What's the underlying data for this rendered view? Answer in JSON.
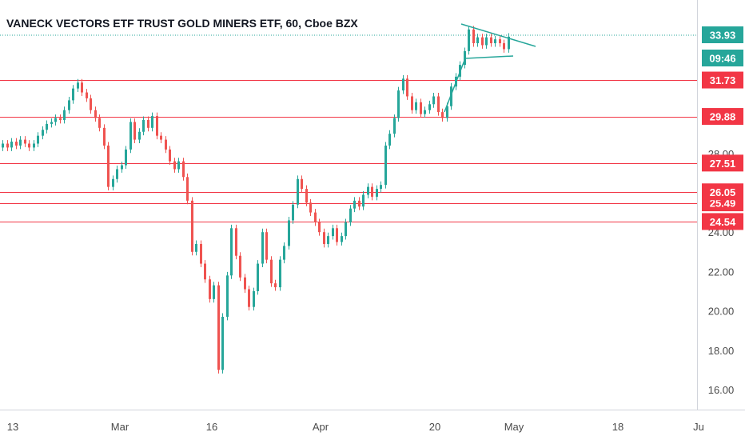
{
  "chart_data": {
    "type": "candlestick",
    "title": "VANECK VECTORS ETF TRUST GOLD MINERS ETF, 60, Cboe BZX",
    "y_ticks": [
      "16.00",
      "18.00",
      "20.00",
      "22.00",
      "24.00",
      "26.00",
      "28.00"
    ],
    "ylim": [
      15.6,
      34.9
    ],
    "x_ticks": [
      "13",
      "Mar",
      "16",
      "Apr",
      "20",
      "May",
      "18",
      "Ju"
    ],
    "grid": false,
    "price_badge": {
      "value": "33.93",
      "timer": "09:46",
      "color": "#26a69a"
    },
    "levels": [
      {
        "value": 31.73,
        "label": "31.73"
      },
      {
        "value": 29.88,
        "label": "29.88"
      },
      {
        "value": 27.51,
        "label": "27.51"
      },
      {
        "value": 25.49,
        "label": "25.49"
      },
      {
        "value": 24.54,
        "label": "24.54"
      },
      {
        "value": 26.05,
        "label": "26.05"
      }
    ],
    "pattern": "pennant",
    "series": [
      {
        "style": "candles",
        "points": [
          [
            28.3,
            28.5
          ],
          [
            28.5,
            28.3
          ],
          [
            28.3,
            28.6
          ],
          [
            28.6,
            28.4
          ],
          [
            28.4,
            28.7
          ],
          [
            28.7,
            28.5
          ],
          [
            28.5,
            28.3
          ],
          [
            28.3,
            28.5
          ],
          [
            28.5,
            28.9
          ],
          [
            28.9,
            29.2
          ],
          [
            29.2,
            29.5
          ],
          [
            29.5,
            29.6
          ],
          [
            29.6,
            29.8
          ],
          [
            29.8,
            29.7
          ],
          [
            29.7,
            30.2
          ],
          [
            30.2,
            30.7
          ],
          [
            30.7,
            31.3
          ],
          [
            31.3,
            31.6
          ],
          [
            31.6,
            31.1
          ],
          [
            31.1,
            30.8
          ],
          [
            30.8,
            30.2
          ],
          [
            30.2,
            29.8
          ],
          [
            29.8,
            29.3
          ],
          [
            29.3,
            28.4
          ],
          [
            28.4,
            26.3
          ],
          [
            26.3,
            26.7
          ],
          [
            26.7,
            27.2
          ],
          [
            27.2,
            27.4
          ],
          [
            27.4,
            28.2
          ],
          [
            28.2,
            29.6
          ],
          [
            29.6,
            28.7
          ],
          [
            28.7,
            29.1
          ],
          [
            29.1,
            29.7
          ],
          [
            29.7,
            29.3
          ],
          [
            29.3,
            29.9
          ],
          [
            29.9,
            28.9
          ],
          [
            28.9,
            28.7
          ],
          [
            28.7,
            28.2
          ],
          [
            28.2,
            27.6
          ],
          [
            27.6,
            27.2
          ],
          [
            27.2,
            27.6
          ],
          [
            27.6,
            26.8
          ],
          [
            26.8,
            25.6
          ],
          [
            25.6,
            23.0
          ],
          [
            23.0,
            23.4
          ],
          [
            23.4,
            22.4
          ],
          [
            22.4,
            21.6
          ],
          [
            21.6,
            20.6
          ],
          [
            20.6,
            21.3
          ],
          [
            21.3,
            17.0
          ],
          [
            17.0,
            19.7
          ],
          [
            19.7,
            21.8
          ],
          [
            21.8,
            24.2
          ],
          [
            24.2,
            22.8
          ],
          [
            22.8,
            21.7
          ],
          [
            21.7,
            21.1
          ],
          [
            21.1,
            20.2
          ],
          [
            20.2,
            21.0
          ],
          [
            21.0,
            22.4
          ],
          [
            22.4,
            24.0
          ],
          [
            24.0,
            22.6
          ],
          [
            22.6,
            21.4
          ],
          [
            21.4,
            21.2
          ],
          [
            21.2,
            22.6
          ],
          [
            22.6,
            23.3
          ],
          [
            23.3,
            24.6
          ],
          [
            24.6,
            25.4
          ],
          [
            25.4,
            26.7
          ],
          [
            26.7,
            26.2
          ],
          [
            26.2,
            25.5
          ],
          [
            25.5,
            25.0
          ],
          [
            25.0,
            24.5
          ],
          [
            24.5,
            24.0
          ],
          [
            24.0,
            23.4
          ],
          [
            23.4,
            23.8
          ],
          [
            23.8,
            24.2
          ],
          [
            24.2,
            23.5
          ],
          [
            23.5,
            23.8
          ],
          [
            23.8,
            24.5
          ],
          [
            24.5,
            25.2
          ],
          [
            25.2,
            25.6
          ],
          [
            25.6,
            25.3
          ],
          [
            25.3,
            25.9
          ],
          [
            25.9,
            26.3
          ],
          [
            26.3,
            25.8
          ],
          [
            25.8,
            26.2
          ],
          [
            26.2,
            26.4
          ],
          [
            26.4,
            28.4
          ],
          [
            28.4,
            29.0
          ],
          [
            29.0,
            29.8
          ],
          [
            29.8,
            31.2
          ],
          [
            31.2,
            31.8
          ],
          [
            31.8,
            30.9
          ],
          [
            30.9,
            30.2
          ],
          [
            30.2,
            30.6
          ],
          [
            30.6,
            30.0
          ],
          [
            30.0,
            30.2
          ],
          [
            30.2,
            30.5
          ],
          [
            30.5,
            30.9
          ],
          [
            30.9,
            30.1
          ],
          [
            30.1,
            29.8
          ],
          [
            29.8,
            30.4
          ],
          [
            30.4,
            31.4
          ],
          [
            31.4,
            31.9
          ],
          [
            31.9,
            32.5
          ],
          [
            32.5,
            33.2
          ],
          [
            33.2,
            34.3
          ],
          [
            34.3,
            33.6
          ],
          [
            33.6,
            33.9
          ],
          [
            33.9,
            33.5
          ],
          [
            33.5,
            33.9
          ],
          [
            33.9,
            33.6
          ],
          [
            33.6,
            33.8
          ],
          [
            33.8,
            33.6
          ],
          [
            33.6,
            33.3
          ],
          [
            33.3,
            33.93
          ]
        ]
      }
    ]
  }
}
